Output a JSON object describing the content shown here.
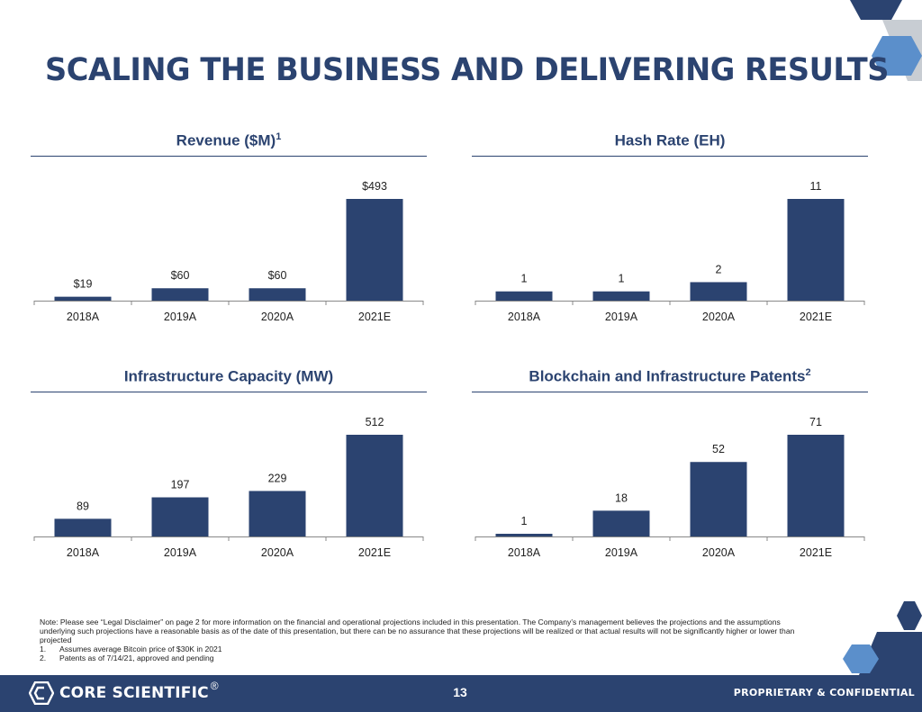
{
  "page": {
    "title": "SCALING THE BUSINESS AND DELIVERING RESULTS",
    "page_number": "13",
    "confidential_label": "PROPRIETARY & CONFIDENTIAL",
    "logo_text": "CORE SCIENTIFIC",
    "logo_reg": "®"
  },
  "note": {
    "text": "Note: Please see “Legal Disclaimer” on page 2 for more information on the financial and operational projections included in this presentation. The Company’s management believes the projections and the assumptions underlying such projections have a reasonable basis as of the date of this presentation, but there can be no assurance that these projections will be realized or that actual results will not be significantly higher or lower than projected",
    "footnotes": [
      {
        "num": "1.",
        "text": "Assumes average Bitcoin price of $30K in 2021"
      },
      {
        "num": "2.",
        "text": "Patents as of 7/14/21, approved and pending"
      }
    ]
  },
  "colors": {
    "bar": "#2b4370",
    "accent_light": "#5b8fcb",
    "gray": "#c8cdd3"
  },
  "chart_data": [
    {
      "type": "bar",
      "title": "Revenue ($M)",
      "title_sup": "1",
      "categories": [
        "2018A",
        "2019A",
        "2020A",
        "2021E"
      ],
      "values": [
        19,
        60,
        60,
        493
      ],
      "labels": [
        "$19",
        "$60",
        "$60",
        "$493"
      ]
    },
    {
      "type": "bar",
      "title": "Hash Rate (EH)",
      "title_sup": "",
      "categories": [
        "2018A",
        "2019A",
        "2020A",
        "2021E"
      ],
      "values": [
        1,
        1,
        2,
        11
      ],
      "labels": [
        "1",
        "1",
        "2",
        "11"
      ]
    },
    {
      "type": "bar",
      "title": "Infrastructure Capacity (MW)",
      "title_sup": "",
      "categories": [
        "2018A",
        "2019A",
        "2020A",
        "2021E"
      ],
      "values": [
        89,
        197,
        229,
        512
      ],
      "labels": [
        "89",
        "197",
        "229",
        "512"
      ]
    },
    {
      "type": "bar",
      "title": "Blockchain and Infrastructure Patents",
      "title_sup": "2",
      "categories": [
        "2018A",
        "2019A",
        "2020A",
        "2021E"
      ],
      "values": [
        1,
        18,
        52,
        71
      ],
      "labels": [
        "1",
        "18",
        "52",
        "71"
      ]
    }
  ]
}
